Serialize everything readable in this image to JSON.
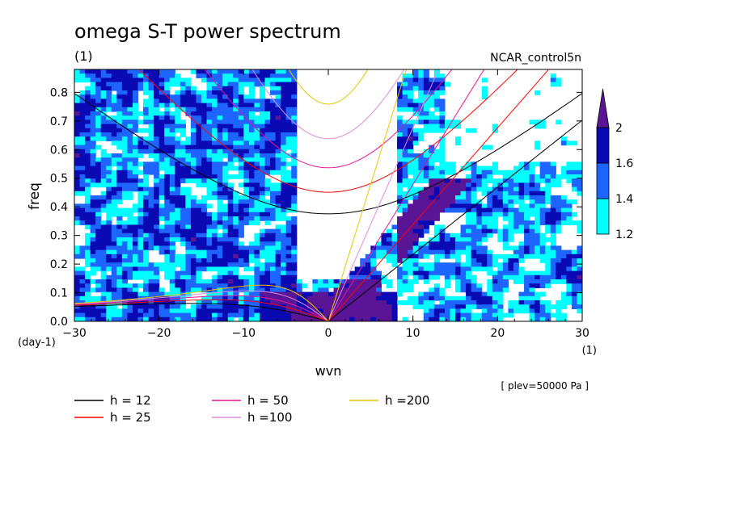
{
  "chart_data": {
    "type": "heatmap",
    "title": "omega S-T power spectrum",
    "title_units": "(1)",
    "case_label": "NCAR_control5n",
    "xlabel": "wvn",
    "x_units": "(1)",
    "ylabel": "freq",
    "y_units": "(day-1)",
    "xlim": [
      -30,
      30
    ],
    "ylim": [
      0,
      0.88
    ],
    "x_ticks": [
      "−30",
      "−20",
      "−10",
      "0",
      "10",
      "20",
      "30"
    ],
    "x_tick_values": [
      -30,
      -20,
      -10,
      0,
      10,
      20,
      30
    ],
    "y_ticks": [
      "0.0",
      "0.1",
      "0.2",
      "0.3",
      "0.4",
      "0.5",
      "0.6",
      "0.7",
      "0.8"
    ],
    "y_tick_values": [
      0,
      0.1,
      0.2,
      0.3,
      0.4,
      0.5,
      0.6,
      0.7,
      0.8
    ],
    "annotation": "[ plev=50000 Pa ]",
    "colorbar": {
      "levels": [
        "1.2",
        "1.4",
        "1.6",
        "2"
      ],
      "level_values": [
        1.2,
        1.4,
        1.6,
        2.0
      ],
      "colors": [
        "#00ffff",
        "#1e64ff",
        "#0a0ab4",
        "#5a1496"
      ]
    },
    "dispersion_curves": [
      {
        "label": "h = 12",
        "h": 12,
        "color": "#000000"
      },
      {
        "label": "h = 25",
        "h": 25,
        "color": "#ff0000"
      },
      {
        "label": "h = 50",
        "h": 50,
        "color": "#e6149b"
      },
      {
        "label": "h =100",
        "h": 100,
        "color": "#dc8cdc"
      },
      {
        "label": "h =200",
        "h": 200,
        "color": "#e6c800"
      }
    ]
  }
}
